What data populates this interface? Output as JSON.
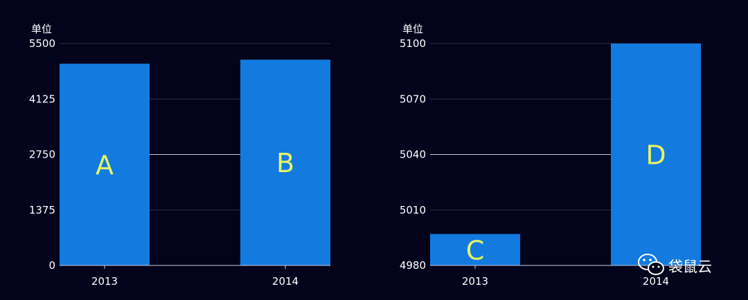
{
  "chart_data": [
    {
      "type": "bar",
      "unit_label": "单位",
      "categories": [
        "2013",
        "2014"
      ],
      "values": [
        5000,
        5100
      ],
      "bar_labels": [
        "A",
        "B"
      ],
      "ylim": [
        0,
        5500
      ],
      "yticks": [
        0,
        1375,
        2750,
        4125,
        5500
      ],
      "bar_color": "#137adf",
      "label_color": "#e6f566",
      "grid": true
    },
    {
      "type": "bar",
      "unit_label": "单位",
      "categories": [
        "2013",
        "2014"
      ],
      "values": [
        4997,
        5100
      ],
      "bar_labels": [
        "C",
        "D"
      ],
      "ylim": [
        4980,
        5100
      ],
      "yticks": [
        4980,
        5010,
        5040,
        5070,
        5100
      ],
      "bar_color": "#137adf",
      "label_color": "#e6f566",
      "grid": true
    }
  ],
  "watermark": {
    "icon": "wechat-icon",
    "text": "袋鼠云"
  }
}
